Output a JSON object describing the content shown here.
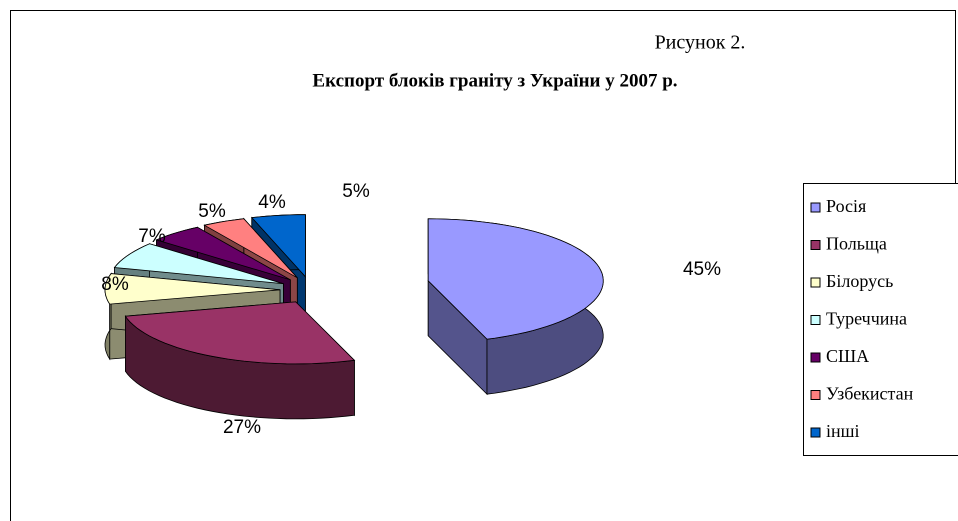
{
  "chart_data": {
    "type": "pie3d",
    "caption": "Рисунок 2.",
    "title": "Експорт блоків граніту з України у 2007 р.",
    "categories": [
      "Росія",
      "Польща",
      "Білорусь",
      "Туреччина",
      "США",
      "Узбекистан",
      "інші"
    ],
    "values": [
      45,
      27,
      8,
      7,
      5,
      4,
      5
    ],
    "value_labels": [
      "45%",
      "27%",
      "8%",
      "7%",
      "5%",
      "4%",
      "5%"
    ],
    "colors": [
      "#9999ff",
      "#993366",
      "#ffffcc",
      "#ccffff",
      "#660066",
      "#ff8080",
      "#0066cc"
    ],
    "legend": "right"
  }
}
